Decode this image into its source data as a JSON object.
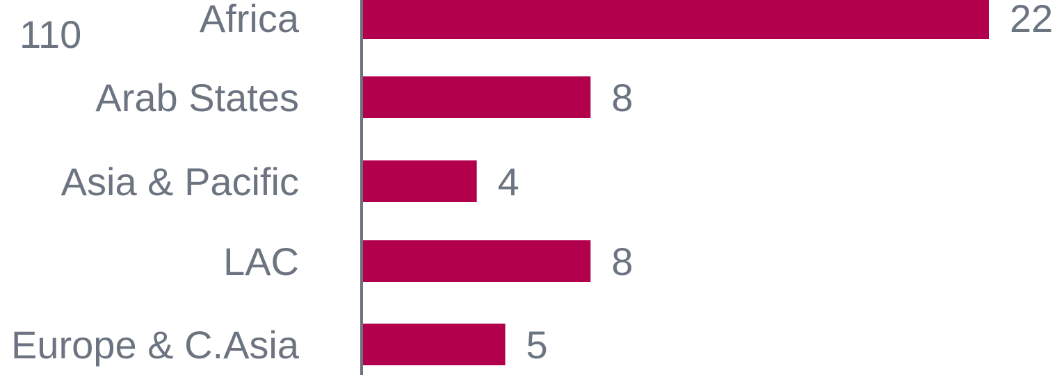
{
  "total": "110",
  "colors": {
    "bar": "#b3004d",
    "text": "#6b7480",
    "axis": "#6b7480"
  },
  "chart_data": {
    "type": "bar",
    "orientation": "horizontal",
    "categories": [
      "Africa",
      "Arab States",
      "Asia & Pacific",
      "LAC",
      "Europe & C.Asia"
    ],
    "values": [
      22,
      8,
      4,
      8,
      5
    ],
    "data_labels": [
      "22",
      "8",
      "4",
      "8",
      "5"
    ],
    "xlim": [
      0,
      22
    ],
    "grid": false,
    "legend": "none"
  }
}
